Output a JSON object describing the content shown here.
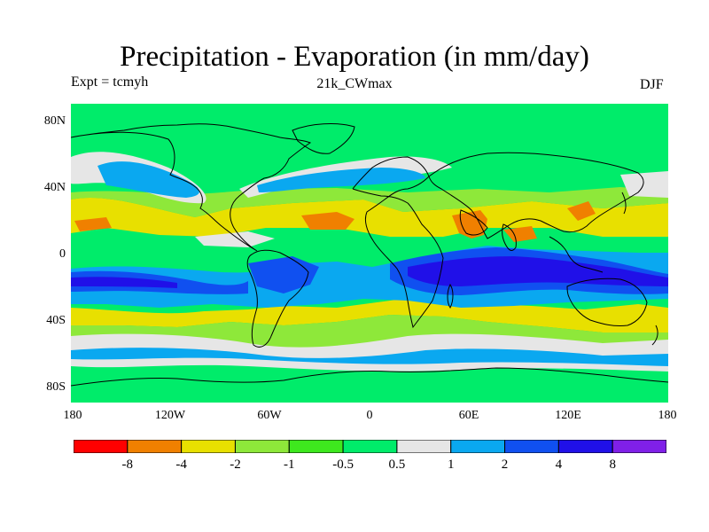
{
  "title": "Precipitation - Evaporation (in mm/day)",
  "subtitle_left": "Expt = tcmyh",
  "subtitle_center": "21k_CWmax",
  "subtitle_right": "DJF",
  "y_axis_labels": [
    "80N",
    "40N",
    "0",
    "40S",
    "80S"
  ],
  "x_axis_labels": [
    "180",
    "120W",
    "60W",
    "0",
    "60E",
    "120E",
    "180"
  ],
  "colorbar": {
    "labels": [
      "-8",
      "-4",
      "-2",
      "-1",
      "-0.5",
      "0.5",
      "1",
      "2",
      "4",
      "8"
    ],
    "colors": [
      "#ff0000",
      "#f08000",
      "#e8e000",
      "#8ee83a",
      "#3ee81e",
      "#00ec6a",
      "#e6e6e6",
      "#0aa8f0",
      "#1050f0",
      "#2010e8",
      "#8020e8"
    ]
  },
  "palette": {
    "ocean_background": "#00ec6a",
    "coast_line": "#000000"
  }
}
